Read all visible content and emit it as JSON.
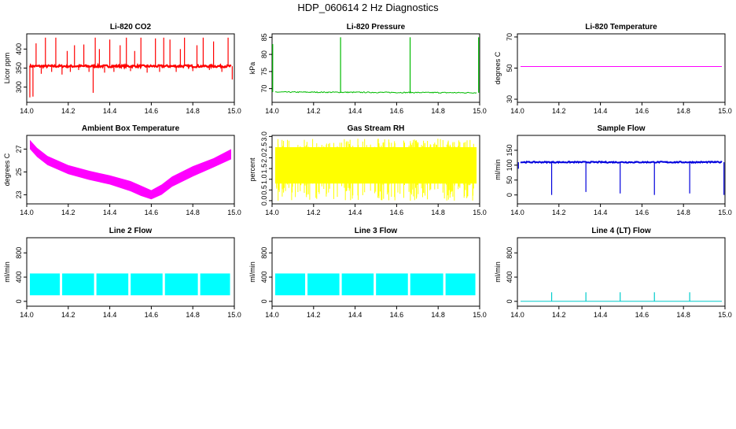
{
  "page": {
    "title": "HDP_060614  2 Hz Diagnostics"
  },
  "chart_data": [
    {
      "id": "co2",
      "type": "line",
      "title": "Li-820 CO2",
      "xlabel": "",
      "ylabel": "Licor ppm",
      "color": "#ff0000",
      "xlim": [
        14.0,
        15.0
      ],
      "ylim": [
        260,
        440
      ],
      "xticks": [
        14.0,
        14.2,
        14.4,
        14.6,
        14.8,
        15.0
      ],
      "xtick_labels": [
        "14.0",
        "14.2",
        "14.4",
        "14.6",
        "14.8",
        "15.0"
      ],
      "yticks": [
        300,
        350,
        400
      ],
      "ytick_labels": [
        "300",
        "350",
        "400"
      ],
      "series": [
        {
          "name": "CO2",
          "baseline": 355,
          "noise": 3,
          "spikes": [
            [
              14.015,
              273
            ],
            [
              14.03,
              275
            ],
            [
              14.045,
              415
            ],
            [
              14.07,
              335
            ],
            [
              14.09,
              430
            ],
            [
              14.12,
              340
            ],
            [
              14.14,
              430
            ],
            [
              14.17,
              333
            ],
            [
              14.195,
              395
            ],
            [
              14.21,
              340
            ],
            [
              14.23,
              410
            ],
            [
              14.25,
              345
            ],
            [
              14.275,
              412
            ],
            [
              14.3,
              340
            ],
            [
              14.32,
              285
            ],
            [
              14.33,
              430
            ],
            [
              14.35,
              400
            ],
            [
              14.375,
              338
            ],
            [
              14.4,
              425
            ],
            [
              14.42,
              340
            ],
            [
              14.45,
              410
            ],
            [
              14.48,
              430
            ],
            [
              14.5,
              342
            ],
            [
              14.52,
              395
            ],
            [
              14.55,
              430
            ],
            [
              14.58,
              338
            ],
            [
              14.62,
              428
            ],
            [
              14.64,
              340
            ],
            [
              14.66,
              430
            ],
            [
              14.69,
              425
            ],
            [
              14.72,
              340
            ],
            [
              14.74,
              400
            ],
            [
              14.76,
              430
            ],
            [
              14.8,
              342
            ],
            [
              14.82,
              410
            ],
            [
              14.85,
              430
            ],
            [
              14.88,
              345
            ],
            [
              14.9,
              420
            ],
            [
              14.94,
              340
            ],
            [
              14.97,
              430
            ],
            [
              14.99,
              320
            ]
          ]
        }
      ]
    },
    {
      "id": "pressure",
      "type": "line",
      "title": "Li-820 Pressure",
      "xlabel": "",
      "ylabel": "kPa",
      "color": "#00bb00",
      "xlim": [
        14.0,
        15.0
      ],
      "ylim": [
        66,
        86
      ],
      "xticks": [
        14.0,
        14.2,
        14.4,
        14.6,
        14.8,
        15.0
      ],
      "xtick_labels": [
        "14.0",
        "14.2",
        "14.4",
        "14.6",
        "14.8",
        "15.0"
      ],
      "yticks": [
        70,
        75,
        80,
        85
      ],
      "ytick_labels": [
        "70",
        "75",
        "80",
        "85"
      ],
      "series": [
        {
          "name": "Pressure",
          "baseline": 69,
          "end_baseline": 68.8,
          "noise": 0.15,
          "spikes": [
            [
              14.003,
              83
            ],
            [
              14.33,
              85
            ],
            [
              14.665,
              85
            ],
            [
              14.995,
              85
            ]
          ]
        }
      ]
    },
    {
      "id": "licor_temp",
      "type": "line",
      "title": "Li-820 Temperature",
      "xlabel": "",
      "ylabel": "degrees C",
      "color": "#ff00ff",
      "xlim": [
        14.0,
        15.0
      ],
      "ylim": [
        28,
        72
      ],
      "xticks": [
        14.0,
        14.2,
        14.4,
        14.6,
        14.8,
        15.0
      ],
      "xtick_labels": [
        "14.0",
        "14.2",
        "14.4",
        "14.6",
        "14.8",
        "15.0"
      ],
      "yticks": [
        30,
        50,
        70
      ],
      "ytick_labels": [
        "30",
        "50",
        "70"
      ],
      "series": [
        {
          "name": "Temperature",
          "baseline": 51,
          "noise": 0,
          "spikes": []
        }
      ]
    },
    {
      "id": "box_temp",
      "type": "area",
      "title": "Ambient Box Temperature",
      "xlabel": "",
      "ylabel": "degrees C",
      "color": "#ff00ff",
      "xlim": [
        14.0,
        15.0
      ],
      "ylim": [
        22.2,
        28.2
      ],
      "xticks": [
        14.0,
        14.2,
        14.4,
        14.6,
        14.8,
        15.0
      ],
      "xtick_labels": [
        "14.0",
        "14.2",
        "14.4",
        "14.6",
        "14.8",
        "15.0"
      ],
      "yticks": [
        23,
        25,
        27
      ],
      "ytick_labels": [
        "23",
        "25",
        "27"
      ],
      "series": [
        {
          "name": "Box Temperature",
          "x": [
            14.0,
            14.05,
            14.1,
            14.2,
            14.3,
            14.4,
            14.5,
            14.55,
            14.6,
            14.65,
            14.7,
            14.8,
            14.9,
            15.0
          ],
          "low": [
            27.0,
            26.3,
            25.6,
            24.8,
            24.3,
            23.9,
            23.3,
            22.9,
            22.6,
            23.0,
            23.7,
            24.6,
            25.4,
            26.1
          ],
          "high": [
            27.8,
            27.1,
            26.4,
            25.6,
            25.1,
            24.7,
            24.2,
            23.8,
            23.4,
            23.9,
            24.6,
            25.5,
            26.2,
            27.0
          ]
        }
      ]
    },
    {
      "id": "rh",
      "type": "area",
      "title": "Gas Stream RH",
      "xlabel": "",
      "ylabel": "percent",
      "color": "#ffff00",
      "xlim": [
        14.0,
        15.0
      ],
      "ylim": [
        -0.15,
        3.05
      ],
      "xticks": [
        14.0,
        14.2,
        14.4,
        14.6,
        14.8,
        15.0
      ],
      "xtick_labels": [
        "14.0",
        "14.2",
        "14.4",
        "14.6",
        "14.8",
        "15.0"
      ],
      "yticks": [
        0.0,
        0.5,
        1.0,
        1.5,
        2.0,
        2.5,
        3.0
      ],
      "ytick_labels": [
        "0.0",
        "0.5",
        "1.0",
        "1.5",
        "2.0",
        "2.5",
        "3.0"
      ],
      "series": [
        {
          "name": "RH",
          "x": [
            14.0,
            15.0
          ],
          "low": [
            0.8,
            0.8
          ],
          "high": [
            2.5,
            2.5
          ]
        }
      ]
    },
    {
      "id": "sample_flow",
      "type": "line",
      "title": "Sample Flow",
      "xlabel": "",
      "ylabel": "ml/min",
      "color": "#0000dd",
      "xlim": [
        14.0,
        15.0
      ],
      "ylim": [
        -30,
        200
      ],
      "xticks": [
        14.0,
        14.2,
        14.4,
        14.6,
        14.8,
        15.0
      ],
      "xtick_labels": [
        "14.0",
        "14.2",
        "14.4",
        "14.6",
        "14.8",
        "15.0"
      ],
      "yticks": [
        0,
        50,
        100,
        150
      ],
      "ytick_labels": [
        "0",
        "50",
        "100",
        "150"
      ],
      "series": [
        {
          "name": "Sample Flow",
          "baseline": 110,
          "noise": 2,
          "spikes": [
            [
              14.005,
              88
            ],
            [
              14.165,
              0
            ],
            [
              14.33,
              10
            ],
            [
              14.495,
              5
            ],
            [
              14.66,
              0
            ],
            [
              14.83,
              5
            ],
            [
              14.995,
              0
            ]
          ]
        }
      ]
    },
    {
      "id": "line2",
      "type": "area",
      "title": "Line 2 Flow",
      "xlabel": "",
      "ylabel": "ml/min",
      "color": "#00ffff",
      "xlim": [
        14.0,
        15.0
      ],
      "ylim": [
        -80,
        1050
      ],
      "xticks": [
        14.0,
        14.2,
        14.4,
        14.6,
        14.8,
        15.0
      ],
      "xtick_labels": [
        "14.0",
        "14.2",
        "14.4",
        "14.6",
        "14.8",
        "15.0"
      ],
      "yticks": [
        0,
        400,
        800
      ],
      "ytick_labels": [
        "0",
        "400",
        "800"
      ],
      "series": [
        {
          "name": "Line 2",
          "x": [
            14.0,
            15.0
          ],
          "low": [
            100,
            100
          ],
          "high": [
            460,
            460
          ],
          "gaps": [
            14.165,
            14.33,
            14.495,
            14.66,
            14.83
          ]
        }
      ]
    },
    {
      "id": "line3",
      "type": "area",
      "title": "Line 3 Flow",
      "xlabel": "",
      "ylabel": "ml/min",
      "color": "#00ffff",
      "xlim": [
        14.0,
        15.0
      ],
      "ylim": [
        -80,
        1050
      ],
      "xticks": [
        14.0,
        14.2,
        14.4,
        14.6,
        14.8,
        15.0
      ],
      "xtick_labels": [
        "14.0",
        "14.2",
        "14.4",
        "14.6",
        "14.8",
        "15.0"
      ],
      "yticks": [
        0,
        400,
        800
      ],
      "ytick_labels": [
        "0",
        "400",
        "800"
      ],
      "series": [
        {
          "name": "Line 3",
          "x": [
            14.0,
            15.0
          ],
          "low": [
            100,
            100
          ],
          "high": [
            460,
            460
          ],
          "gaps": [
            14.165,
            14.33,
            14.495,
            14.66,
            14.83
          ]
        }
      ]
    },
    {
      "id": "line4",
      "type": "line",
      "title": "Line 4 (LT) Flow",
      "xlabel": "",
      "ylabel": "ml/min",
      "color": "#00cccc",
      "xlim": [
        14.0,
        15.0
      ],
      "ylim": [
        -80,
        1050
      ],
      "xticks": [
        14.0,
        14.2,
        14.4,
        14.6,
        14.8,
        15.0
      ],
      "xtick_labels": [
        "14.0",
        "14.2",
        "14.4",
        "14.6",
        "14.8",
        "15.0"
      ],
      "yticks": [
        0,
        400,
        800
      ],
      "ytick_labels": [
        "0",
        "400",
        "800"
      ],
      "series": [
        {
          "name": "Line 4",
          "baseline": 0,
          "noise": 0,
          "spikes": [
            [
              14.165,
              150
            ],
            [
              14.33,
              150
            ],
            [
              14.495,
              150
            ],
            [
              14.66,
              150
            ],
            [
              14.83,
              150
            ]
          ]
        }
      ]
    }
  ]
}
